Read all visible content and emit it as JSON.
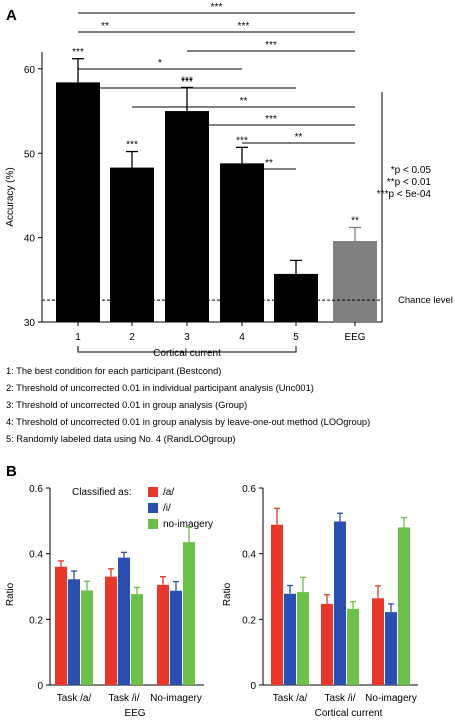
{
  "panel_a": {
    "label": "A",
    "chart_data": {
      "type": "bar",
      "categories": [
        "1",
        "2",
        "3",
        "4",
        "5",
        "EEG"
      ],
      "values": [
        58.4,
        48.3,
        55.0,
        48.8,
        35.7,
        39.6
      ],
      "errors": [
        2.8,
        1.9,
        2.8,
        1.9,
        1.6,
        1.6
      ],
      "bar_colors": [
        "#000000",
        "#000000",
        "#000000",
        "#000000",
        "#000000",
        "#808080"
      ],
      "bar_sig": [
        "***",
        "***",
        "***",
        "***",
        "",
        "**"
      ],
      "ylabel": "Accuracy (%)",
      "ylim": [
        30,
        62
      ],
      "yticks": [
        "30",
        "40",
        "50",
        "60"
      ],
      "chance_level": 32.6,
      "chance_label": "Chance level",
      "group_label": "Cortical current",
      "comparisons": [
        {
          "from": 0,
          "to": 5,
          "stars": "***"
        },
        {
          "from": 0,
          "to": 1,
          "stars": "**"
        },
        {
          "from": 1,
          "to": 5,
          "stars": "***"
        },
        {
          "from": 2,
          "to": 5,
          "stars": "***"
        },
        {
          "from": 0,
          "to": 3,
          "stars": "*"
        },
        {
          "from": 0,
          "to": 4,
          "stars": "***"
        },
        {
          "from": 1,
          "to": 5,
          "stars": "**"
        },
        {
          "from": 2,
          "to": 5,
          "stars": "***"
        },
        {
          "from": 3,
          "to": 5,
          "stars": "**"
        },
        {
          "from": 3,
          "to": 4,
          "stars": "**"
        }
      ]
    },
    "pvalue_legend": [
      "*p < 0.05",
      "**p < 0.01",
      "***p < 5e-04"
    ],
    "notes": [
      "1: The best condition for each participant (Bestcond)",
      "2: Threshold of uncorrected 0.01 in individual participant analysis (Unc001)",
      "3: Threshold of uncorrected 0.01 in group analysis (Group)",
      "4: Threshold of uncorrected 0.01 in group analysis by leave-one-out method (LOOgroup)",
      "5: Randomly labeled data using No. 4 (RandLOOgroup)"
    ]
  },
  "panel_b": {
    "label": "B",
    "legend_title": "Classified as:",
    "colors": {
      "a": "#e8372a",
      "i": "#2a4fb0",
      "no": "#6cc04a"
    },
    "chart_data": [
      {
        "type": "bar",
        "title": "EEG",
        "ylabel": "Ratio",
        "ylim": [
          0,
          0.6
        ],
        "yticks": [
          "0",
          "0.2",
          "0.4",
          "0.6"
        ],
        "categories": [
          "Task /a/",
          "Task /i/",
          "No-imagery"
        ],
        "series": [
          {
            "name": "/a/",
            "values": [
              0.36,
              0.33,
              0.305
            ],
            "errors": [
              0.018,
              0.024,
              0.025
            ]
          },
          {
            "name": "/i/",
            "values": [
              0.322,
              0.388,
              0.287
            ],
            "errors": [
              0.025,
              0.016,
              0.028
            ]
          },
          {
            "name": "no-imagery",
            "values": [
              0.288,
              0.277,
              0.435
            ],
            "errors": [
              0.028,
              0.02,
              0.045
            ]
          }
        ]
      },
      {
        "type": "bar",
        "title": "Cortical current",
        "ylabel": "Ratio",
        "ylim": [
          0,
          0.6
        ],
        "yticks": [
          "0",
          "0.2",
          "0.4",
          "0.6"
        ],
        "categories": [
          "Task /a/",
          "Task /i/",
          "No-imagery"
        ],
        "series": [
          {
            "name": "/a/",
            "values": [
              0.488,
              0.247,
              0.264
            ],
            "errors": [
              0.05,
              0.028,
              0.038
            ]
          },
          {
            "name": "/i/",
            "values": [
              0.278,
              0.498,
              0.222
            ],
            "errors": [
              0.025,
              0.025,
              0.025
            ]
          },
          {
            "name": "no-imagery",
            "values": [
              0.283,
              0.232,
              0.48
            ],
            "errors": [
              0.045,
              0.022,
              0.03
            ]
          }
        ]
      }
    ]
  }
}
